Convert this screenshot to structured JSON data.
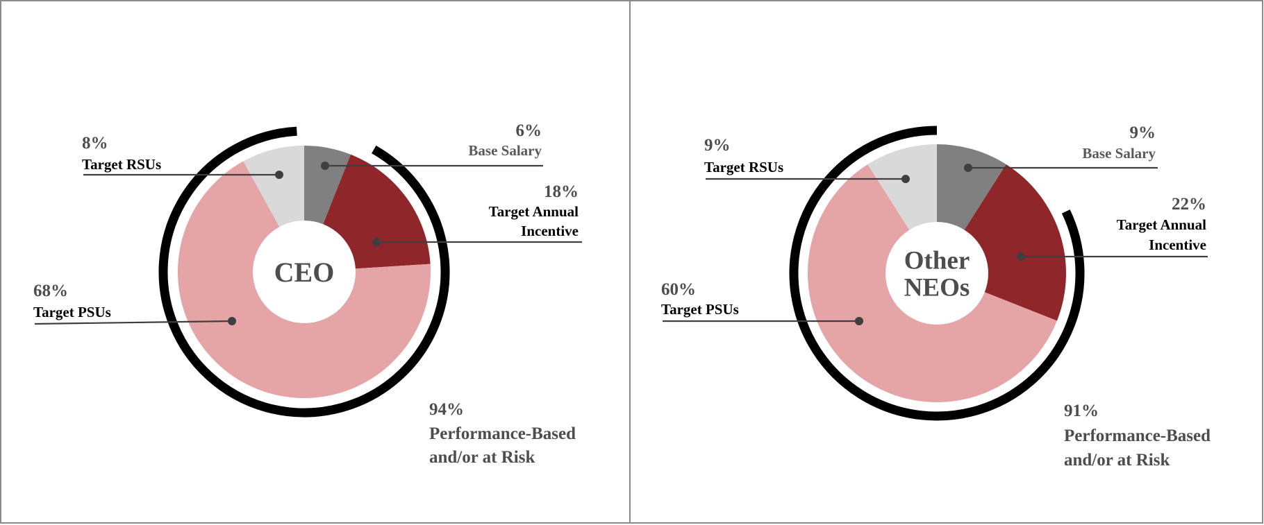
{
  "chart_data": [
    {
      "type": "pie",
      "center_label": [
        "CEO"
      ],
      "slices": [
        {
          "label": "Base Salary",
          "value": 6,
          "display": "6%",
          "color": "#808080"
        },
        {
          "label": "Target Annual Incentive",
          "value": 18,
          "display": "18%",
          "color": "#8e262a"
        },
        {
          "label": "Target PSUs",
          "value": 68,
          "display": "68%",
          "color": "#e5a4a6"
        },
        {
          "label": "Target RSUs",
          "value": 8,
          "display": "8%",
          "color": "#d9d9d9"
        }
      ],
      "summary": {
        "value": "94%",
        "label": "Performance-Based and/or at Risk"
      }
    },
    {
      "type": "pie",
      "center_label": [
        "Other",
        "NEOs"
      ],
      "slices": [
        {
          "label": "Base Salary",
          "value": 9,
          "display": "9%",
          "color": "#808080"
        },
        {
          "label": "Target Annual Incentive",
          "value": 22,
          "display": "22%",
          "color": "#8e262a"
        },
        {
          "label": "Target PSUs",
          "value": 60,
          "display": "60%",
          "color": "#e5a4a6"
        },
        {
          "label": "Target RSUs",
          "value": 9,
          "display": "9%",
          "color": "#d9d9d9"
        }
      ],
      "summary": {
        "value": "91%",
        "label": "Performance-Based and/or at Risk"
      }
    }
  ]
}
